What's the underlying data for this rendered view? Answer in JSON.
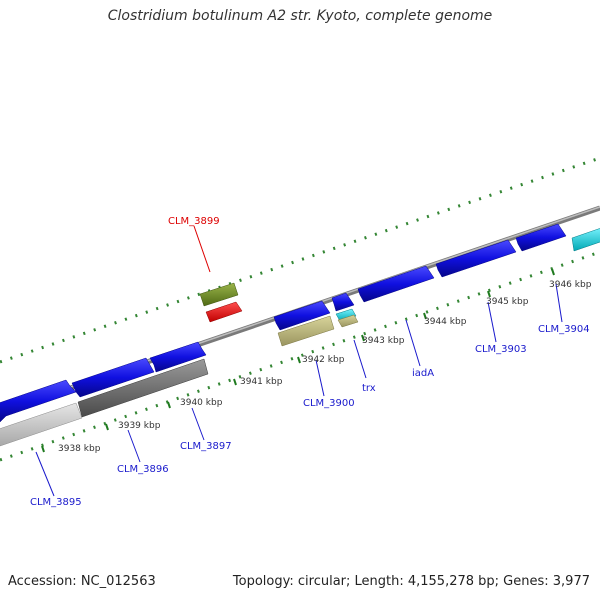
{
  "title": "Clostridium botulinum A2 str. Kyoto, complete genome",
  "footer": {
    "accession": "Accession: NC_012563",
    "summary": "Topology: circular; Length: 4,155,278 bp; Genes: 3,977"
  },
  "colors": {
    "backbone": "#888888",
    "tick": "#1f7a1f",
    "forward_gene": "#1010e0",
    "label_default": "#1a1acc",
    "label_highlight": "#dd0000",
    "kbp_label": "#333333"
  },
  "scale": {
    "unit": "kbp",
    "labels": [
      "3938 kbp",
      "3939 kbp",
      "3940 kbp",
      "3941 kbp",
      "3942 kbp",
      "3943 kbp",
      "3944 kbp",
      "3945 kbp",
      "3946 kbp"
    ]
  },
  "features": [
    {
      "name": "CLM_3895",
      "color": "#1010e0",
      "strand": "+"
    },
    {
      "name": "CLM_3896",
      "color": "#1010e0",
      "strand": "+"
    },
    {
      "name": "CLM_3897",
      "color": "#1010e0",
      "strand": "+"
    },
    {
      "name": "CLM_3899",
      "color": "#6b8e23",
      "strand": "+",
      "highlight": true
    },
    {
      "name": "CLM_3900",
      "color": "#1010e0",
      "strand": "+"
    },
    {
      "name": "trx",
      "color": "#1010e0",
      "strand": "+"
    },
    {
      "name": "iadA",
      "color": "#1010e0",
      "strand": "+"
    },
    {
      "name": "CLM_3903",
      "color": "#1010e0",
      "strand": "+"
    },
    {
      "name": "CLM_3904",
      "color": "#00c8d4",
      "strand": "+"
    }
  ]
}
